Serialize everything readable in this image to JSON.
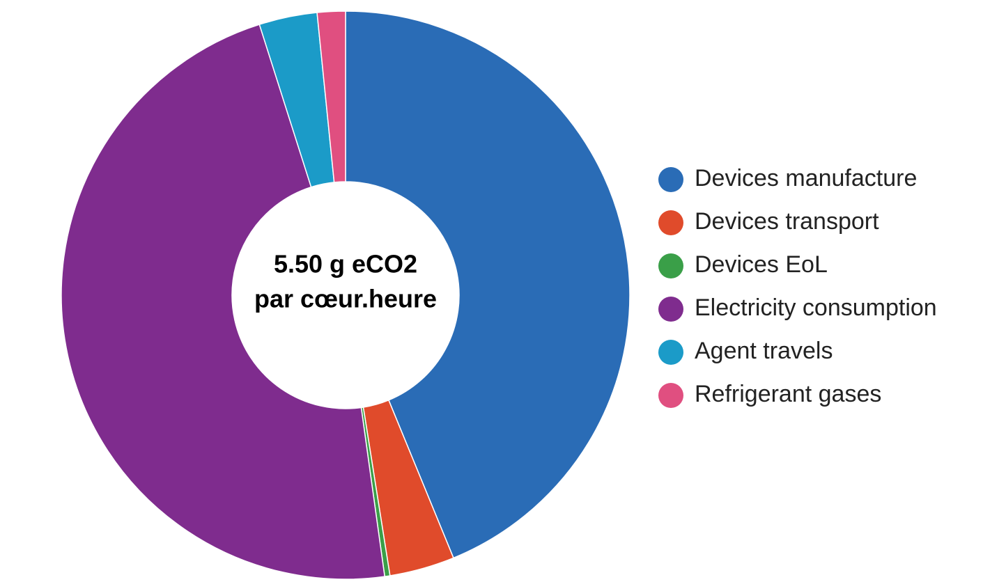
{
  "chart_data": {
    "type": "donut",
    "center_text": [
      "5.50 g eCO2",
      "par cœur.heure"
    ],
    "categories": [
      "Devices manufacture",
      "Devices transport",
      "Devices EoL",
      "Electricity consumption",
      "Agent travels",
      "Refrigerant gases"
    ],
    "values": [
      43.8,
      3.7,
      0.3,
      47.3,
      3.3,
      1.6
    ],
    "colors": [
      "#2a6cb6",
      "#e04b2b",
      "#3a9f48",
      "#7f2c8e",
      "#1b9bc8",
      "#e04f80"
    ],
    "legend": "right"
  }
}
